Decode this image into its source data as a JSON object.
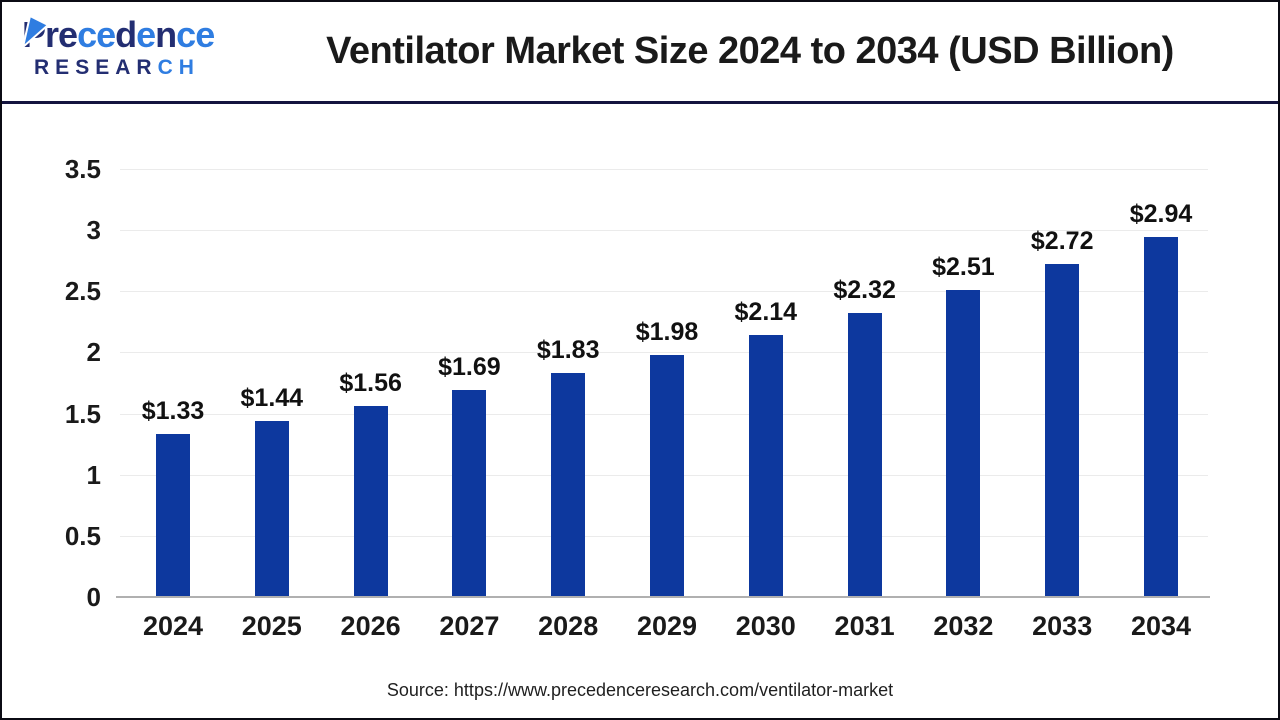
{
  "header": {
    "title": "Ventilator Market Size 2024 to 2034 (USD Billion)",
    "logo": {
      "brand_letters": [
        {
          "ch": "P",
          "color": "navy"
        },
        {
          "ch": "r",
          "color": "navy"
        },
        {
          "ch": "e",
          "color": "navy"
        },
        {
          "ch": "c",
          "color": "blue"
        },
        {
          "ch": "e",
          "color": "blue"
        },
        {
          "ch": "d",
          "color": "navy"
        },
        {
          "ch": "e",
          "color": "blue"
        },
        {
          "ch": "n",
          "color": "navy"
        },
        {
          "ch": "c",
          "color": "blue"
        },
        {
          "ch": "e",
          "color": "blue"
        }
      ],
      "subtitle_letters": [
        {
          "ch": "R",
          "color": "navy"
        },
        {
          "ch": "E",
          "color": "navy"
        },
        {
          "ch": "S",
          "color": "navy"
        },
        {
          "ch": "E",
          "color": "navy"
        },
        {
          "ch": "A",
          "color": "navy"
        },
        {
          "ch": "R",
          "color": "navy"
        },
        {
          "ch": "C",
          "color": "blue"
        },
        {
          "ch": "H",
          "color": "blue"
        }
      ]
    }
  },
  "footer": {
    "source": "Source: https://www.precedenceresearch.com/ventilator-market"
  },
  "chart_data": {
    "type": "bar",
    "title": "Ventilator Market Size 2024 to 2034 (USD Billion)",
    "unit": "USD Billion",
    "categories": [
      "2024",
      "2025",
      "2026",
      "2027",
      "2028",
      "2029",
      "2030",
      "2031",
      "2032",
      "2033",
      "2034"
    ],
    "values": [
      1.33,
      1.44,
      1.56,
      1.69,
      1.83,
      1.98,
      2.14,
      2.32,
      2.51,
      2.72,
      2.94
    ],
    "bar_labels": [
      "$1.33",
      "$1.44",
      "$1.56",
      "$1.69",
      "$1.83",
      "$1.98",
      "$2.14",
      "$2.32",
      "$2.51",
      "$2.72",
      "$2.94"
    ],
    "xlabel": "",
    "ylabel": "",
    "ylim": [
      0,
      3.5
    ],
    "yticks": [
      0,
      0.5,
      1,
      1.5,
      2,
      2.5,
      3,
      3.5
    ],
    "ytick_labels": [
      "0",
      "0.5",
      "1",
      "1.5",
      "2",
      "2.5",
      "3",
      "3.5"
    ],
    "grid": true,
    "legend": "none",
    "bar_color": "#0d389e"
  },
  "colors": {
    "navy": "#232e72",
    "light_blue": "#2f7de1",
    "grid_line": "#ebebeb",
    "axis_line": "#b0b0b0",
    "divider": "#14143f",
    "bar": "#0d389e"
  }
}
